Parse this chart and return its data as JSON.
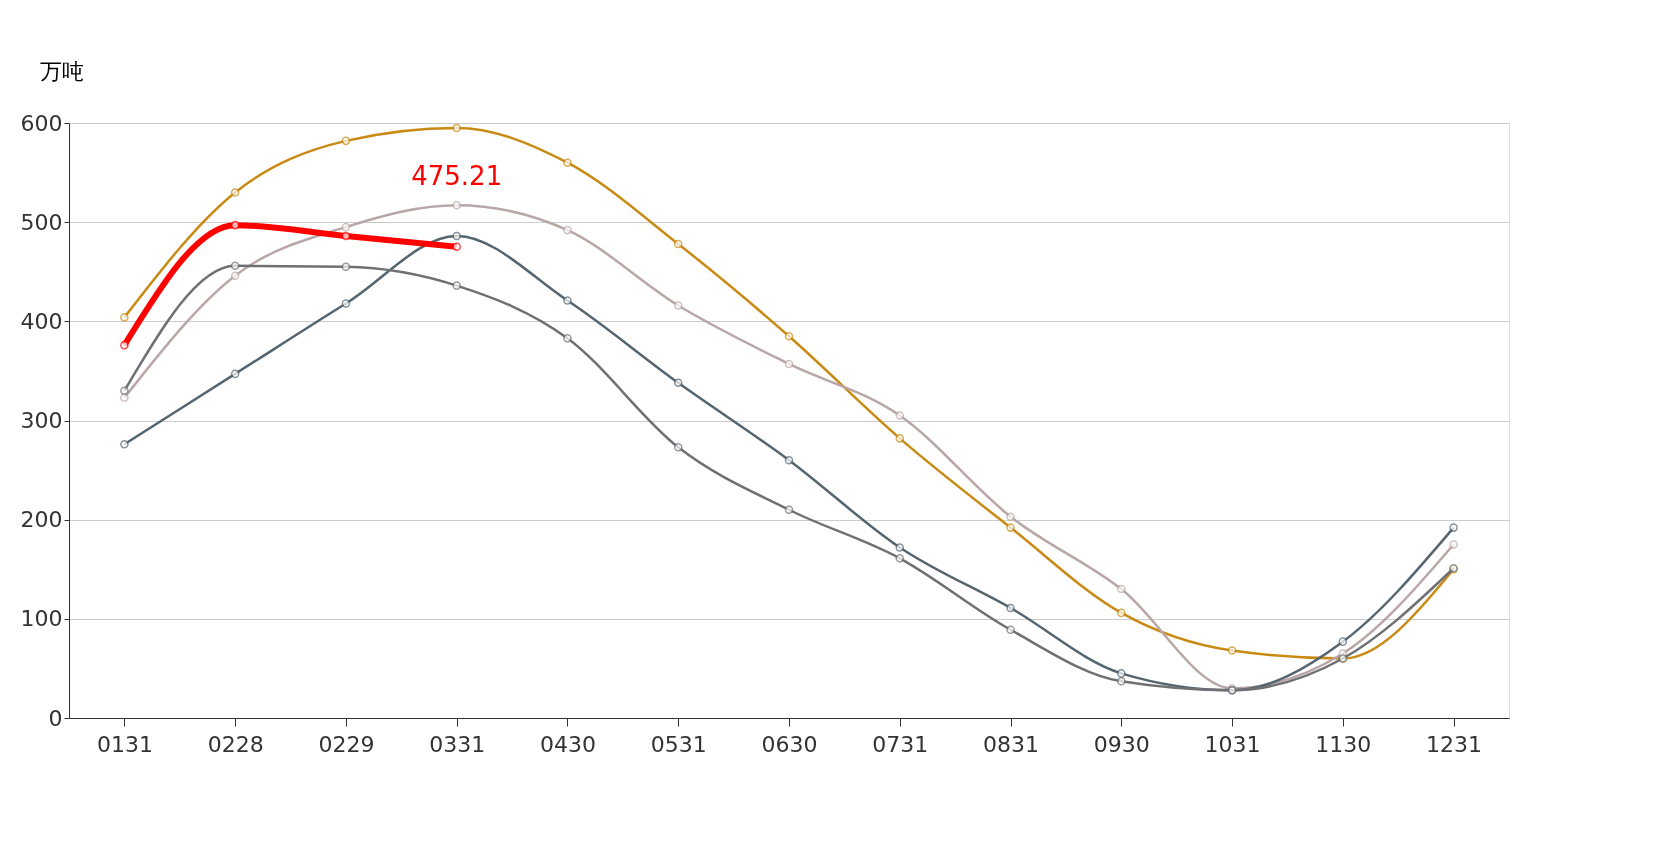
{
  "chart_data": {
    "type": "line",
    "ylabel": "万吨",
    "categories": [
      "0131",
      "0228",
      "0229",
      "0331",
      "0430",
      "0531",
      "0630",
      "0731",
      "0831",
      "0930",
      "1031",
      "1130",
      "1231"
    ],
    "series": [
      {
        "color": "#c98a14",
        "values": [
          404,
          530,
          582,
          595,
          560,
          478,
          385,
          282,
          192,
          106,
          68,
          60,
          150
        ]
      },
      {
        "color": "#b9a7a7",
        "values": [
          323,
          446,
          495,
          517,
          492,
          416,
          357,
          305,
          203,
          130,
          30,
          65,
          175
        ]
      },
      {
        "color": "#546570",
        "values": [
          276,
          347,
          418,
          486,
          421,
          338,
          260,
          172,
          111,
          45,
          28,
          77,
          192
        ]
      },
      {
        "color": "#6e7074",
        "values": [
          330,
          456,
          455,
          436,
          383,
          273,
          210,
          161,
          89,
          37,
          28,
          60,
          151
        ]
      },
      {
        "color": "#ff0000",
        "values": [
          376,
          497,
          486,
          475.21,
          null,
          null,
          null,
          null,
          null,
          null,
          null,
          null,
          null
        ]
      }
    ],
    "annotations": [
      {
        "text": "475.21",
        "x": "0331",
        "y": 475.21
      }
    ],
    "ylim": [
      0,
      600
    ],
    "yticks": [
      0,
      100,
      200,
      300,
      400,
      500,
      600
    ],
    "grid": "y",
    "legend": false,
    "marker": "circle",
    "line_style": "solid"
  }
}
